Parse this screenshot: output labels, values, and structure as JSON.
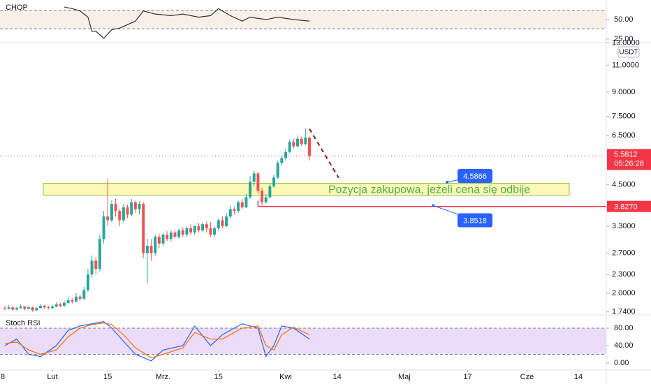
{
  "chart_data": [
    {
      "type": "candlestick",
      "currency": "USDT",
      "log_scale": true,
      "grid": false,
      "color_up": "#26a69a",
      "color_down": "#ef5350",
      "xlim": [
        18.76,
        172.06
      ],
      "ylim": [
        1.71,
        13.1
      ],
      "xticks": [
        {
          "value": 18,
          "label": "8"
        },
        {
          "value": 32,
          "label": "Lut"
        },
        {
          "value": 46,
          "label": "15"
        },
        {
          "value": 60,
          "label": "Mrz."
        },
        {
          "value": 74,
          "label": "15"
        },
        {
          "value": 91,
          "label": "Kwi"
        },
        {
          "value": 104,
          "label": "14"
        },
        {
          "value": 121,
          "label": "Maj"
        },
        {
          "value": 137,
          "label": "17"
        },
        {
          "value": 152,
          "label": "Cze"
        },
        {
          "value": 165,
          "label": "14"
        }
      ],
      "yticks": [
        {
          "value": 13,
          "label": "13.0000"
        },
        {
          "value": 11,
          "label": "11.0000"
        },
        {
          "value": 9,
          "label": "9.0000"
        },
        {
          "value": 7.5,
          "label": "7.5000"
        },
        {
          "value": 6.5,
          "label": "6.5000"
        },
        {
          "value": 4.5,
          "label": "4.5000"
        },
        {
          "value": 3.3,
          "label": "3.3000"
        },
        {
          "value": 2.7,
          "label": "2.7000"
        },
        {
          "value": 2.3,
          "label": "2.3000"
        },
        {
          "value": 2,
          "label": "2.0000"
        },
        {
          "value": 1.74,
          "label": "1.7400"
        }
      ],
      "x": [
        20,
        21,
        22,
        23,
        24,
        25,
        26,
        27,
        28,
        29,
        30,
        31,
        32,
        33,
        34,
        35,
        36,
        37,
        38,
        39,
        40,
        41,
        42,
        43,
        44,
        45,
        46,
        47,
        48,
        49,
        50,
        51,
        52,
        53,
        54,
        55,
        56,
        57,
        58,
        59,
        60,
        61,
        62,
        63,
        64,
        65,
        66,
        67,
        68,
        69,
        70,
        71,
        72,
        73,
        74,
        75,
        76,
        77,
        78,
        79,
        80,
        81,
        82,
        83,
        84,
        85,
        86,
        87,
        88,
        89,
        90,
        91,
        92,
        93,
        94,
        95,
        96,
        97
      ],
      "ohlc": [
        [
          1.79,
          1.82,
          1.76,
          1.78
        ],
        [
          1.78,
          1.83,
          1.77,
          1.8
        ],
        [
          1.8,
          1.81,
          1.75,
          1.77
        ],
        [
          1.77,
          1.81,
          1.76,
          1.79
        ],
        [
          1.79,
          1.84,
          1.78,
          1.81
        ],
        [
          1.81,
          1.82,
          1.76,
          1.78
        ],
        [
          1.78,
          1.82,
          1.77,
          1.8
        ],
        [
          1.8,
          1.81,
          1.74,
          1.76
        ],
        [
          1.76,
          1.8,
          1.75,
          1.79
        ],
        [
          1.79,
          1.85,
          1.78,
          1.82
        ],
        [
          1.82,
          1.83,
          1.78,
          1.8
        ],
        [
          1.8,
          1.82,
          1.77,
          1.79
        ],
        [
          1.79,
          1.83,
          1.78,
          1.81
        ],
        [
          1.81,
          1.87,
          1.8,
          1.84
        ],
        [
          1.84,
          1.86,
          1.8,
          1.82
        ],
        [
          1.82,
          1.89,
          1.81,
          1.86
        ],
        [
          1.86,
          1.95,
          1.85,
          1.9
        ],
        [
          1.9,
          1.93,
          1.85,
          1.88
        ],
        [
          1.88,
          2.0,
          1.87,
          1.95
        ],
        [
          1.95,
          1.98,
          1.89,
          1.92
        ],
        [
          1.92,
          2.1,
          1.9,
          2.05
        ],
        [
          2.05,
          2.4,
          2.02,
          2.3
        ],
        [
          2.3,
          2.65,
          2.25,
          2.55
        ],
        [
          2.55,
          2.62,
          2.3,
          2.4
        ],
        [
          2.4,
          3.1,
          2.35,
          3.0
        ],
        [
          3.0,
          3.7,
          2.9,
          3.55
        ],
        [
          3.55,
          4.7,
          3.3,
          3.45
        ],
        [
          3.45,
          4.0,
          3.4,
          3.9
        ],
        [
          3.9,
          4.05,
          3.55,
          3.7
        ],
        [
          3.7,
          3.75,
          3.3,
          3.45
        ],
        [
          3.45,
          3.9,
          3.4,
          3.8
        ],
        [
          3.8,
          3.88,
          3.5,
          3.6
        ],
        [
          3.6,
          4.05,
          3.55,
          3.95
        ],
        [
          3.95,
          4.0,
          3.65,
          3.75
        ],
        [
          3.75,
          3.98,
          3.6,
          3.9
        ],
        [
          3.9,
          3.95,
          2.6,
          2.7
        ],
        [
          2.7,
          3.0,
          2.15,
          2.85
        ],
        [
          2.85,
          3.0,
          2.55,
          2.7
        ],
        [
          2.7,
          3.1,
          2.65,
          3.05
        ],
        [
          3.05,
          3.12,
          2.8,
          2.9
        ],
        [
          2.9,
          3.15,
          2.85,
          3.1
        ],
        [
          3.1,
          3.18,
          2.95,
          3.0
        ],
        [
          3.0,
          3.2,
          2.95,
          3.15
        ],
        [
          3.15,
          3.22,
          3.0,
          3.05
        ],
        [
          3.05,
          3.25,
          3.0,
          3.2
        ],
        [
          3.2,
          3.28,
          3.05,
          3.1
        ],
        [
          3.1,
          3.3,
          3.05,
          3.25
        ],
        [
          3.25,
          3.35,
          3.1,
          3.15
        ],
        [
          3.15,
          3.32,
          3.1,
          3.3
        ],
        [
          3.3,
          3.38,
          3.15,
          3.2
        ],
        [
          3.2,
          3.4,
          3.15,
          3.35
        ],
        [
          3.35,
          3.42,
          3.15,
          3.25
        ],
        [
          3.25,
          3.4,
          3.05,
          3.1
        ],
        [
          3.1,
          3.3,
          3.05,
          3.25
        ],
        [
          3.25,
          3.5,
          3.2,
          3.45
        ],
        [
          3.45,
          3.55,
          3.25,
          3.3
        ],
        [
          3.3,
          3.65,
          3.28,
          3.55
        ],
        [
          3.55,
          3.85,
          3.5,
          3.75
        ],
        [
          3.75,
          3.82,
          3.6,
          3.7
        ],
        [
          3.7,
          4.0,
          3.65,
          3.95
        ],
        [
          3.95,
          4.05,
          3.75,
          3.8
        ],
        [
          3.8,
          4.2,
          3.78,
          4.1
        ],
        [
          4.1,
          4.8,
          4.05,
          4.6
        ],
        [
          4.6,
          5.0,
          4.45,
          4.9
        ],
        [
          4.9,
          4.95,
          4.2,
          4.3
        ],
        [
          4.3,
          4.4,
          3.85,
          3.95
        ],
        [
          3.95,
          4.2,
          3.9,
          4.1
        ],
        [
          4.1,
          4.55,
          4.05,
          4.45
        ],
        [
          4.45,
          4.85,
          4.4,
          4.75
        ],
        [
          4.75,
          5.4,
          4.7,
          5.3
        ],
        [
          5.3,
          5.6,
          5.2,
          5.5
        ],
        [
          5.5,
          5.9,
          5.4,
          5.75
        ],
        [
          5.75,
          6.3,
          5.7,
          6.2
        ],
        [
          6.2,
          6.35,
          5.9,
          6.0
        ],
        [
          6.0,
          6.5,
          5.95,
          6.35
        ],
        [
          6.35,
          6.45,
          6.0,
          6.1
        ],
        [
          6.1,
          6.85,
          6.05,
          6.4
        ],
        [
          6.4,
          6.45,
          5.4,
          5.5812
        ]
      ],
      "last_price": {
        "value": 5.5812,
        "label": "5.5812",
        "countdown": "05:26:28",
        "color": "#f23645"
      },
      "zone": {
        "x": [
          29.7,
          162.7
        ],
        "low": 4.16,
        "high": 4.55,
        "color": "#fff59d",
        "text": "Pozycja zakupowa, jeżeli cena się odbije",
        "text_color": "#4caf50"
      },
      "level": {
        "x_start": 84,
        "value": 3.827,
        "label": "3.8270",
        "color": "#f23645"
      },
      "callouts": [
        {
          "x": 131.8,
          "value": 4.5866,
          "label": "4.5866"
        },
        {
          "x": 128.3,
          "value": 3.8518,
          "label": "3.8518"
        }
      ],
      "callout_color": "#2962ff",
      "projection": {
        "x": [
          97,
          104.4
        ],
        "y": [
          6.84,
          4.74
        ],
        "color": "#8b1a1a"
      }
    },
    {
      "type": "line",
      "title": "CHOP",
      "ylim": [
        21.4,
        75
      ],
      "color": "#333333",
      "yticks": [
        {
          "value": 50,
          "label": "50.00"
        },
        {
          "value": 25,
          "label": "25.00"
        }
      ],
      "band": [
        38.2,
        61.8
      ],
      "band_color": "#f6f0e8",
      "series": [
        {
          "color": "#333333",
          "x": [
            35,
            37,
            39,
            41,
            42,
            43,
            45,
            47,
            49,
            53,
            55,
            58,
            62,
            65,
            69,
            72,
            74,
            77,
            80,
            82,
            86,
            89,
            93,
            97
          ],
          "values": [
            66,
            64,
            61,
            53,
            35,
            35,
            26,
            37,
            39,
            48,
            61,
            57,
            55,
            57,
            53,
            55,
            64,
            55,
            48,
            53,
            50,
            53,
            50,
            48
          ]
        }
      ]
    },
    {
      "type": "line",
      "title": "Stoch RSI",
      "ylim": [
        -16,
        108.8
      ],
      "yticks": [
        {
          "value": 80,
          "label": "80.00"
        },
        {
          "value": 40,
          "label": "40.00"
        },
        {
          "value": 0,
          "label": "0.00"
        }
      ],
      "band": [
        20,
        80
      ],
      "band_color": "#ecdcfb",
      "series": [
        {
          "color": "#2962ff",
          "x": [
            20,
            23,
            26,
            29,
            33,
            36,
            39,
            42,
            45,
            47,
            50,
            53,
            57,
            60,
            65,
            68,
            72,
            75,
            80,
            84,
            86,
            88,
            90,
            93,
            97
          ],
          "values": [
            40,
            55,
            20,
            15,
            40,
            75,
            85,
            90,
            95,
            80,
            50,
            20,
            5,
            30,
            40,
            85,
            40,
            65,
            90,
            80,
            15,
            40,
            85,
            80,
            55
          ]
        },
        {
          "color": "#ff6d00",
          "x": [
            20,
            23,
            26,
            29,
            33,
            36,
            39,
            42,
            45,
            47,
            50,
            53,
            57,
            60,
            65,
            68,
            72,
            75,
            80,
            84,
            86,
            88,
            90,
            93,
            97
          ],
          "values": [
            45,
            48,
            30,
            20,
            30,
            60,
            80,
            88,
            92,
            88,
            65,
            35,
            12,
            20,
            35,
            70,
            55,
            55,
            80,
            85,
            40,
            30,
            65,
            82,
            65
          ]
        }
      ]
    }
  ]
}
